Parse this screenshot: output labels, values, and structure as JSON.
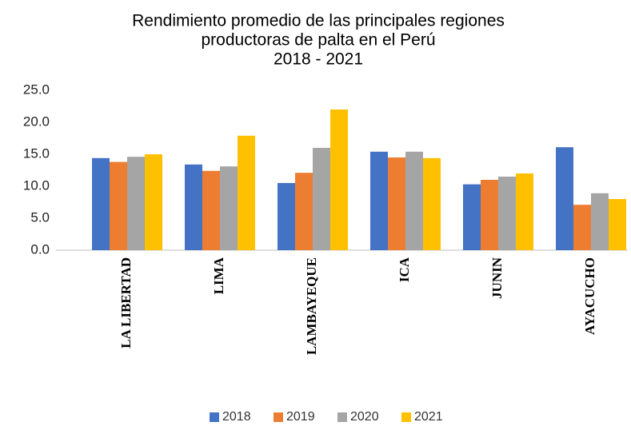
{
  "chart_data": {
    "type": "bar",
    "title": [
      "Rendimiento promedio de las principales regiones",
      "productoras de palta en el Perú",
      "2018 - 2021"
    ],
    "categories": [
      "LA LIBERTAD",
      "LIMA",
      "LAMBAYEQUE",
      "ICA",
      "JUNIN",
      "AYACUCHO"
    ],
    "series": [
      {
        "name": "2018",
        "color": "#4472c4",
        "values": [
          14.4,
          13.4,
          10.5,
          15.4,
          10.3,
          16.1
        ]
      },
      {
        "name": "2019",
        "color": "#ed7d31",
        "values": [
          13.8,
          12.4,
          12.1,
          14.5,
          11.0,
          7.1
        ]
      },
      {
        "name": "2020",
        "color": "#a5a5a5",
        "values": [
          14.6,
          13.1,
          16.0,
          15.4,
          11.5,
          8.9
        ]
      },
      {
        "name": "2021",
        "color": "#ffc000",
        "values": [
          15.0,
          17.9,
          22.0,
          14.4,
          12.0,
          8.0
        ]
      }
    ],
    "ylim": [
      0,
      25
    ],
    "yticks": [
      {
        "value": 0,
        "label": "0.0"
      },
      {
        "value": 5,
        "label": "5.0"
      },
      {
        "value": 10,
        "label": "10.0"
      },
      {
        "value": 15,
        "label": "15.0"
      },
      {
        "value": 20,
        "label": "20.0"
      },
      {
        "value": 25,
        "label": "25.0"
      }
    ],
    "grid": false,
    "legend": "bottom"
  }
}
